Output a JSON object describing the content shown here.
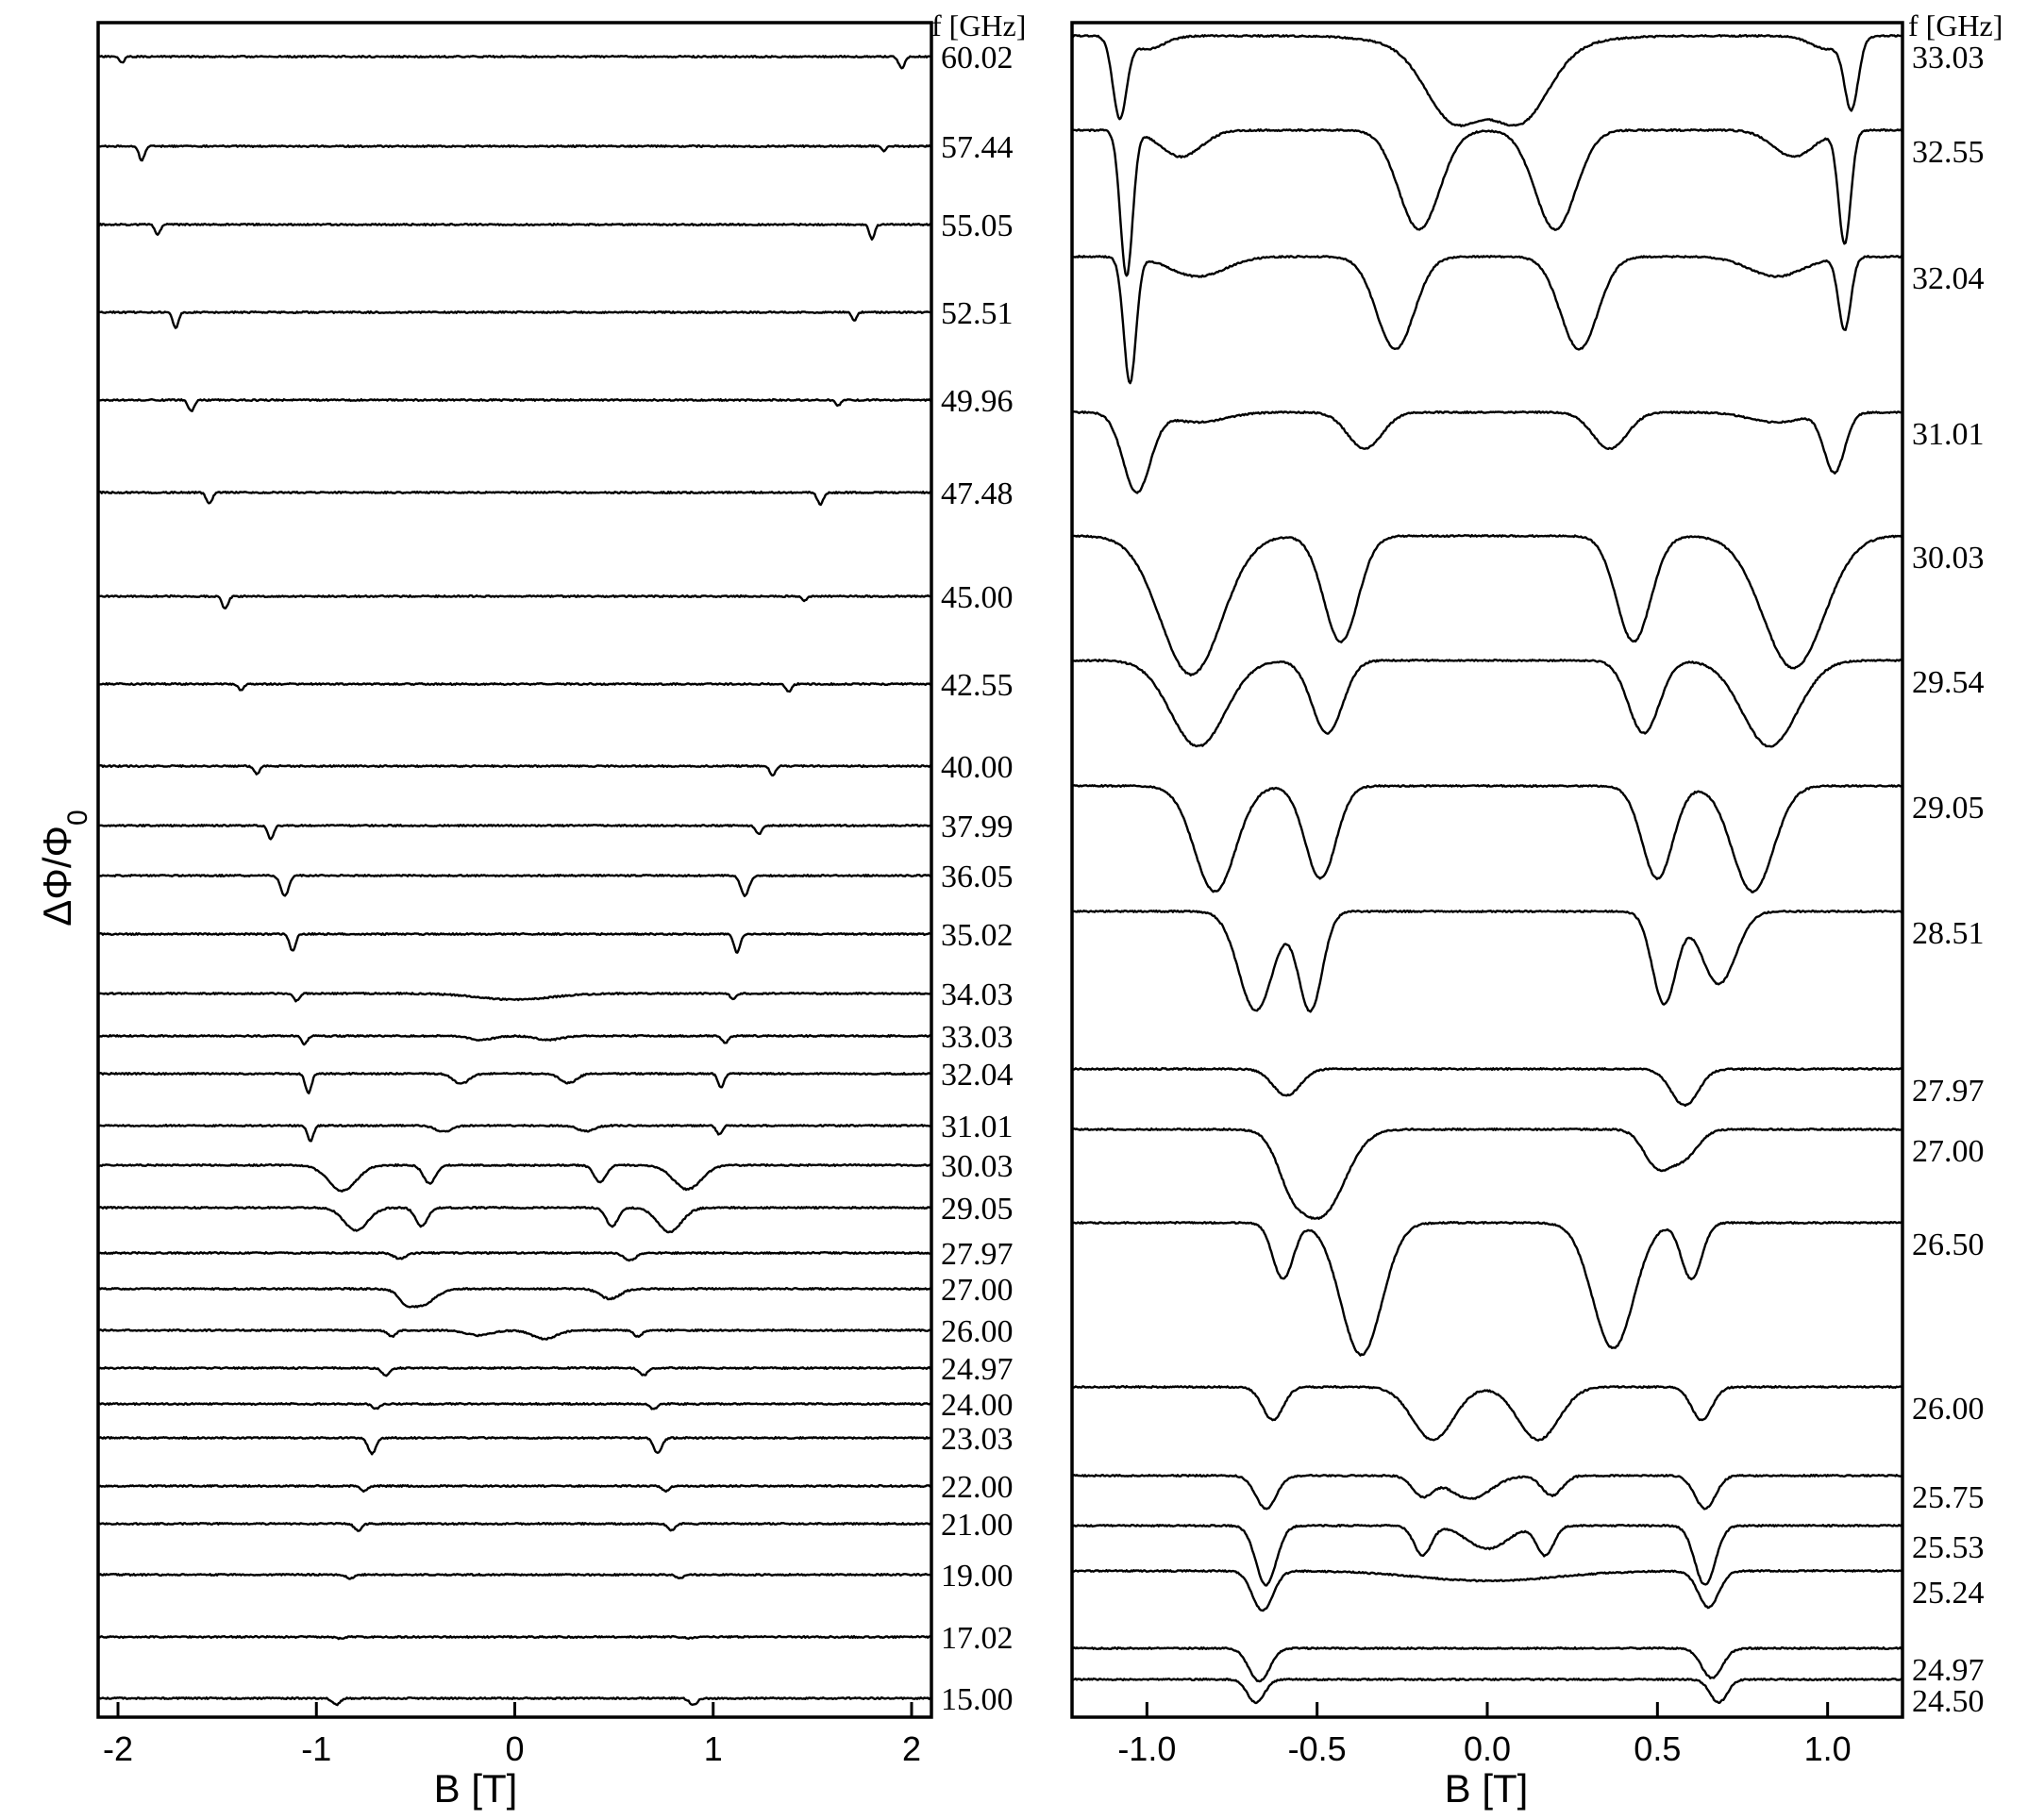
{
  "chart_data": [
    {
      "type": "line",
      "panel": "left",
      "xlabel": "B [T]",
      "ylabel": "ΔΦ/Φ0",
      "freq_header": "f [GHz]",
      "xlim": [
        -2.1,
        2.1
      ],
      "xticks": [
        -2,
        -1,
        0,
        1,
        2
      ],
      "xtick_labels": [
        "-2",
        "-1",
        "0",
        "1",
        "2"
      ],
      "series": [
        {
          "name": "60.02",
          "dips": [
            [
              -1.98,
              0.22,
              0.012
            ],
            [
              1.95,
              0.4,
              0.015
            ]
          ]
        },
        {
          "name": "57.44",
          "dips": [
            [
              -1.88,
              0.5,
              0.014
            ],
            [
              1.86,
              0.18,
              0.012
            ]
          ]
        },
        {
          "name": "55.05",
          "dips": [
            [
              -1.8,
              0.36,
              0.013
            ],
            [
              1.8,
              0.5,
              0.013
            ]
          ]
        },
        {
          "name": "52.51",
          "dips": [
            [
              -1.71,
              0.55,
              0.014
            ],
            [
              1.71,
              0.3,
              0.012
            ]
          ]
        },
        {
          "name": "49.96",
          "dips": [
            [
              -1.63,
              0.4,
              0.015
            ],
            [
              1.63,
              0.2,
              0.012
            ]
          ]
        },
        {
          "name": "47.48",
          "dips": [
            [
              -1.54,
              0.38,
              0.015
            ],
            [
              1.54,
              0.42,
              0.015
            ]
          ]
        },
        {
          "name": "45.00",
          "dips": [
            [
              -1.46,
              0.45,
              0.014
            ],
            [
              1.46,
              0.15,
              0.012
            ]
          ]
        },
        {
          "name": "42.55",
          "dips": [
            [
              -1.38,
              0.22,
              0.014
            ],
            [
              1.38,
              0.28,
              0.014
            ]
          ]
        },
        {
          "name": "40.00",
          "dips": [
            [
              -1.3,
              0.28,
              0.014
            ],
            [
              1.3,
              0.33,
              0.014
            ]
          ]
        },
        {
          "name": "37.99",
          "dips": [
            [
              -1.23,
              0.48,
              0.015
            ],
            [
              1.23,
              0.3,
              0.015
            ]
          ]
        },
        {
          "name": "36.05",
          "dips": [
            [
              -1.16,
              0.72,
              0.02
            ],
            [
              1.16,
              0.72,
              0.02
            ]
          ]
        },
        {
          "name": "35.02",
          "dips": [
            [
              -1.12,
              0.6,
              0.015
            ],
            [
              1.12,
              0.68,
              0.015
            ]
          ]
        },
        {
          "name": "34.03",
          "dips": [
            [
              -1.1,
              0.26,
              0.014
            ],
            [
              1.1,
              0.18,
              0.014
            ],
            [
              0.0,
              0.22,
              0.18
            ]
          ]
        },
        {
          "name": "33.03",
          "dips": [
            [
              -1.06,
              0.28,
              0.014
            ],
            [
              1.06,
              0.26,
              0.014
            ],
            [
              -0.17,
              0.14,
              0.06
            ],
            [
              0.17,
              0.14,
              0.06
            ]
          ]
        },
        {
          "name": "32.04",
          "dips": [
            [
              -1.04,
              0.7,
              0.015
            ],
            [
              1.04,
              0.48,
              0.015
            ],
            [
              -0.27,
              0.35,
              0.04
            ],
            [
              0.27,
              0.33,
              0.04
            ]
          ]
        },
        {
          "name": "31.01",
          "dips": [
            [
              -1.03,
              0.55,
              0.015
            ],
            [
              1.03,
              0.3,
              0.015
            ],
            [
              -0.36,
              0.22,
              0.04
            ],
            [
              0.36,
              0.2,
              0.04
            ]
          ]
        },
        {
          "name": "30.03",
          "dips": [
            [
              -0.87,
              0.9,
              0.07
            ],
            [
              0.87,
              0.85,
              0.07
            ],
            [
              -0.43,
              0.65,
              0.03
            ],
            [
              0.43,
              0.6,
              0.03
            ]
          ]
        },
        {
          "name": "29.05",
          "dips": [
            [
              -0.8,
              0.8,
              0.06
            ],
            [
              0.78,
              0.85,
              0.06
            ],
            [
              -0.47,
              0.65,
              0.03
            ],
            [
              0.49,
              0.65,
              0.03
            ]
          ]
        },
        {
          "name": "27.97",
          "dips": [
            [
              -0.58,
              0.2,
              0.03
            ],
            [
              0.58,
              0.26,
              0.03
            ]
          ]
        },
        {
          "name": "27.00",
          "dips": [
            [
              -0.48,
              0.6,
              0.07
            ],
            [
              0.48,
              0.35,
              0.05
            ],
            [
              -0.55,
              0.22,
              0.03
            ]
          ]
        },
        {
          "name": "26.00",
          "dips": [
            [
              -0.62,
              0.22,
              0.02
            ],
            [
              0.62,
              0.22,
              0.02
            ],
            [
              -0.18,
              0.18,
              0.06
            ],
            [
              0.15,
              0.3,
              0.06
            ]
          ]
        },
        {
          "name": "24.97",
          "dips": [
            [
              -0.65,
              0.25,
              0.02
            ],
            [
              0.65,
              0.25,
              0.02
            ]
          ]
        },
        {
          "name": "24.00",
          "dips": [
            [
              -0.7,
              0.18,
              0.018
            ],
            [
              0.7,
              0.18,
              0.018
            ]
          ]
        },
        {
          "name": "23.03",
          "dips": [
            [
              -0.72,
              0.55,
              0.02
            ],
            [
              0.72,
              0.55,
              0.02
            ]
          ]
        },
        {
          "name": "22.00",
          "dips": [
            [
              -0.76,
              0.18,
              0.018
            ],
            [
              0.76,
              0.18,
              0.018
            ]
          ]
        },
        {
          "name": "21.00",
          "dips": [
            [
              -0.79,
              0.24,
              0.018
            ],
            [
              0.79,
              0.24,
              0.018
            ]
          ]
        },
        {
          "name": "19.00",
          "dips": [
            [
              -0.83,
              0.14,
              0.018
            ],
            [
              0.83,
              0.14,
              0.018
            ]
          ]
        },
        {
          "name": "17.02",
          "dips": [
            [
              -0.88,
              0.05,
              0.018
            ],
            [
              0.88,
              0.05,
              0.018
            ]
          ]
        },
        {
          "name": "15.00",
          "dips": [
            [
              -0.9,
              0.22,
              0.02
            ],
            [
              0.9,
              0.22,
              0.02
            ]
          ]
        }
      ]
    },
    {
      "type": "line",
      "panel": "right",
      "xlabel": "B [T]",
      "freq_header": "f [GHz]",
      "xlim": [
        -1.22,
        1.22
      ],
      "xticks": [
        -1.0,
        -0.5,
        0.0,
        0.5,
        1.0
      ],
      "xtick_labels": [
        "-1.0",
        "-0.5",
        "0.0",
        "0.5",
        "1.0"
      ],
      "series": [
        {
          "name": "33.03",
          "dips": [
            [
              -1.08,
              1.2,
              0.02
            ],
            [
              1.07,
              1.05,
              0.02
            ],
            [
              -0.1,
              0.95,
              0.08
            ],
            [
              0.1,
              0.95,
              0.08
            ],
            [
              0.0,
              0.4,
              0.18
            ],
            [
              -1.0,
              0.2,
              0.05
            ],
            [
              1.0,
              0.2,
              0.05
            ]
          ]
        },
        {
          "name": "32.55",
          "dips": [
            [
              -1.06,
              2.2,
              0.018
            ],
            [
              1.05,
              1.7,
              0.018
            ],
            [
              -0.2,
              1.5,
              0.06
            ],
            [
              0.2,
              1.5,
              0.06
            ],
            [
              -0.9,
              0.4,
              0.06
            ],
            [
              0.9,
              0.4,
              0.06
            ]
          ]
        },
        {
          "name": "32.04",
          "dips": [
            [
              -1.05,
              1.9,
              0.018
            ],
            [
              1.05,
              1.1,
              0.018
            ],
            [
              -0.27,
              1.4,
              0.055
            ],
            [
              0.27,
              1.4,
              0.055
            ],
            [
              -0.85,
              0.3,
              0.08
            ],
            [
              0.85,
              0.3,
              0.08
            ]
          ]
        },
        {
          "name": "31.01",
          "dips": [
            [
              -1.03,
              1.2,
              0.04
            ],
            [
              1.02,
              0.9,
              0.03
            ],
            [
              -0.36,
              0.55,
              0.05
            ],
            [
              0.36,
              0.55,
              0.05
            ],
            [
              -0.85,
              0.15,
              0.08
            ],
            [
              0.85,
              0.15,
              0.08
            ]
          ]
        },
        {
          "name": "30.03",
          "dips": [
            [
              -0.87,
              2.1,
              0.09
            ],
            [
              0.9,
              2.0,
              0.09
            ],
            [
              -0.43,
              1.6,
              0.05
            ],
            [
              0.43,
              1.6,
              0.05
            ]
          ]
        },
        {
          "name": "29.54",
          "dips": [
            [
              -0.85,
              1.3,
              0.08
            ],
            [
              0.83,
              1.3,
              0.08
            ],
            [
              -0.47,
              1.1,
              0.045
            ],
            [
              0.46,
              1.1,
              0.045
            ]
          ]
        },
        {
          "name": "29.05",
          "dips": [
            [
              -0.8,
              1.6,
              0.06
            ],
            [
              0.78,
              1.6,
              0.06
            ],
            [
              -0.49,
              1.4,
              0.045
            ],
            [
              0.5,
              1.4,
              0.045
            ]
          ]
        },
        {
          "name": "28.51",
          "dips": [
            [
              -0.68,
              1.5,
              0.05
            ],
            [
              0.68,
              1.1,
              0.05
            ],
            [
              -0.52,
              1.5,
              0.035
            ],
            [
              0.52,
              1.4,
              0.035
            ]
          ]
        },
        {
          "name": "27.97",
          "dips": [
            [
              -0.59,
              0.4,
              0.04
            ],
            [
              0.58,
              0.55,
              0.04
            ]
          ]
        },
        {
          "name": "27.00",
          "dips": [
            [
              -0.49,
              1.3,
              0.07
            ],
            [
              0.5,
              0.55,
              0.04
            ],
            [
              -0.58,
              0.45,
              0.04
            ],
            [
              0.58,
              0.4,
              0.04
            ]
          ]
        },
        {
          "name": "26.50",
          "dips": [
            [
              -0.37,
              2.0,
              0.06
            ],
            [
              0.37,
              1.9,
              0.06
            ],
            [
              -0.6,
              0.85,
              0.03
            ],
            [
              0.6,
              0.85,
              0.03
            ]
          ]
        },
        {
          "name": "26.00",
          "dips": [
            [
              -0.63,
              0.5,
              0.03
            ],
            [
              0.63,
              0.5,
              0.03
            ],
            [
              -0.16,
              0.8,
              0.06
            ],
            [
              0.15,
              0.8,
              0.06
            ]
          ]
        },
        {
          "name": "25.75",
          "dips": [
            [
              -0.65,
              0.5,
              0.03
            ],
            [
              0.64,
              0.5,
              0.03
            ],
            [
              -0.19,
              0.3,
              0.03
            ],
            [
              0.19,
              0.3,
              0.03
            ],
            [
              -0.05,
              0.35,
              0.06
            ]
          ]
        },
        {
          "name": "25.53",
          "dips": [
            [
              -0.65,
              0.9,
              0.03
            ],
            [
              0.64,
              0.9,
              0.03
            ],
            [
              -0.19,
              0.45,
              0.025
            ],
            [
              0.17,
              0.45,
              0.025
            ],
            [
              0.0,
              0.35,
              0.06
            ]
          ]
        },
        {
          "name": "25.24",
          "dips": [
            [
              -0.66,
              0.6,
              0.03
            ],
            [
              0.65,
              0.55,
              0.03
            ],
            [
              0.0,
              0.15,
              0.2
            ]
          ]
        },
        {
          "name": "24.97",
          "dips": [
            [
              -0.67,
              0.5,
              0.03
            ],
            [
              0.66,
              0.45,
              0.03
            ]
          ]
        },
        {
          "name": "24.50",
          "dips": [
            [
              -0.68,
              0.35,
              0.025
            ],
            [
              0.68,
              0.35,
              0.025
            ]
          ]
        }
      ]
    }
  ]
}
